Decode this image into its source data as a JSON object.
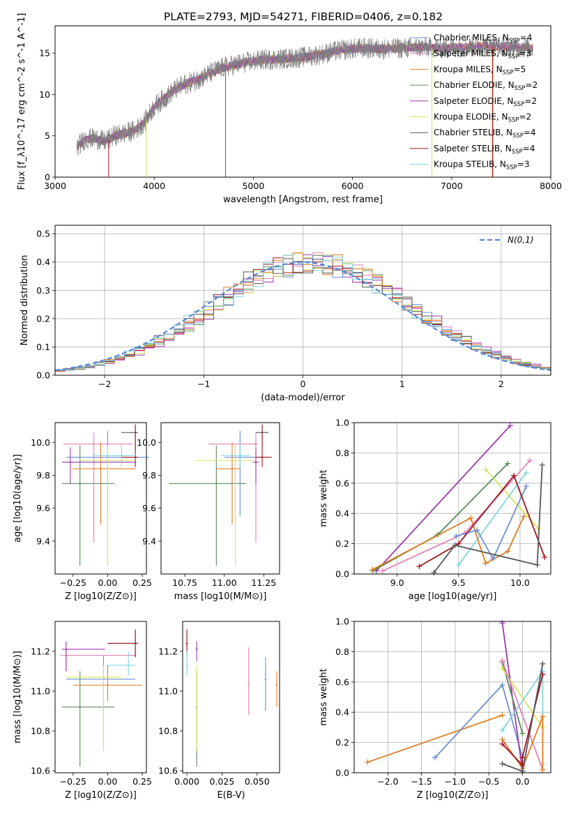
{
  "title": "PLATE=2793, MJD=54271, FIBERID=0406, z=0.182",
  "colors": {
    "CM": "#6a8fd4",
    "SM": "#e37fb8",
    "KM": "#e07d20",
    "CE": "#5a8a5a",
    "SE": "#9a3aab",
    "KE": "#d8e55a",
    "CS": "#555555",
    "SS": "#a01520",
    "KS": "#7fd6de",
    "normal": "#5b86d6"
  },
  "chart_data": [
    {
      "id": "spectrum",
      "type": "line",
      "xlabel": "wavelength [Angstrom, rest frame]",
      "ylabel": "Flux [f_λ10^-17 erg cm^-2 s^-1 A^-1]",
      "xlim": [
        3000,
        8000
      ],
      "ylim": [
        0,
        18.3
      ],
      "xticks": [
        3000,
        4000,
        5000,
        6000,
        7000,
        8000
      ],
      "yticks": [
        0,
        5,
        10,
        15
      ],
      "data_range": [
        3220,
        7820
      ],
      "continuum": [
        [
          3220,
          3.6
        ],
        [
          3300,
          4.6
        ],
        [
          3400,
          4.7
        ],
        [
          3500,
          4.3
        ],
        [
          3600,
          5.0
        ],
        [
          3700,
          5.3
        ],
        [
          3800,
          5.6
        ],
        [
          3900,
          6.6
        ],
        [
          4000,
          8.5
        ],
        [
          4100,
          9.5
        ],
        [
          4200,
          10.5
        ],
        [
          4300,
          11.2
        ],
        [
          4400,
          11.6
        ],
        [
          4500,
          12.2
        ],
        [
          4700,
          13.3
        ],
        [
          4900,
          13.8
        ],
        [
          5100,
          14.2
        ],
        [
          5300,
          14.3
        ],
        [
          5500,
          14.5
        ],
        [
          5700,
          14.9
        ],
        [
          5900,
          15.4
        ],
        [
          6100,
          15.6
        ],
        [
          6300,
          15.5
        ],
        [
          6500,
          15.6
        ],
        [
          6700,
          15.7
        ],
        [
          6900,
          15.6
        ],
        [
          7100,
          15.7
        ],
        [
          7300,
          15.9
        ],
        [
          7500,
          15.8
        ],
        [
          7820,
          15.6
        ]
      ],
      "legend": [
        {
          "label": "Chabrier MILES, N_SSP=4",
          "color_key": "CM"
        },
        {
          "label": "Salpeter MILES, N_SSP=3",
          "color_key": "SM"
        },
        {
          "label": "Kroupa MILES, N_SSP=5",
          "color_key": "KM"
        },
        {
          "label": "Chabrier ELODIE, N_SSP=2",
          "color_key": "CE"
        },
        {
          "label": "Salpeter ELODIE, N_SSP=2",
          "color_key": "SE"
        },
        {
          "label": "Kroupa ELODIE, N_SSP=2",
          "color_key": "KE"
        },
        {
          "label": "Chabrier STELIB, N_SSP=4",
          "color_key": "CS"
        },
        {
          "label": "Salpeter STELIB, N_SSP=4",
          "color_key": "SS"
        },
        {
          "label": "Kroupa STELIB, N_SSP=3",
          "color_key": "KS"
        }
      ]
    },
    {
      "id": "residuals",
      "type": "line",
      "xlabel": "(data-model)/error",
      "ylabel": "Normed distribution",
      "xlim": [
        -2.5,
        2.5
      ],
      "ylim": [
        0,
        0.53
      ],
      "xticks": [
        -2,
        -1,
        0,
        1,
        2
      ],
      "yticks": [
        0.0,
        0.1,
        0.2,
        0.3,
        0.4,
        0.5
      ],
      "grid": true,
      "legend_label": "N(0,1)",
      "legend_position": "top-right"
    },
    {
      "id": "age_vs_Z",
      "type": "scatter",
      "xlabel": "Z [log10(Z/Z⊙)]",
      "ylabel": "age  [log10(age/yr)]",
      "xlim": [
        -0.38,
        0.28
      ],
      "ylim": [
        9.2,
        10.12
      ],
      "xticks": [
        -0.25,
        0.0,
        0.25
      ],
      "yticks": [
        9.4,
        9.6,
        9.8,
        10.0
      ],
      "points": [
        {
          "k": "CM",
          "x": 0.0,
          "y": 9.91,
          "xe": [
            -0.3,
            0.3
          ],
          "ye": [
            9.55,
            10.07
          ]
        },
        {
          "k": "SM",
          "x": -0.1,
          "y": 9.99,
          "xe": [
            -0.32,
            0.18
          ],
          "ye": [
            9.39,
            10.06
          ]
        },
        {
          "k": "KM",
          "x": -0.05,
          "y": 9.84,
          "xe": [
            -0.25,
            0.2
          ],
          "ye": [
            9.5,
            10.0
          ]
        },
        {
          "k": "CE",
          "x": -0.2,
          "y": 9.75,
          "xe": [
            -0.33,
            0.05
          ],
          "ye": [
            9.25,
            9.98
          ]
        },
        {
          "k": "SE",
          "x": -0.27,
          "y": 9.88,
          "xe": [
            -0.33,
            0.2
          ],
          "ye": [
            9.75,
            9.97
          ]
        },
        {
          "k": "KE",
          "x": 0.0,
          "y": 9.89,
          "xe": [
            -0.2,
            0.18
          ],
          "ye": [
            9.25,
            9.98
          ]
        },
        {
          "k": "CS",
          "x": 0.2,
          "y": 10.06,
          "xe": [
            0.1,
            0.22
          ],
          "ye": [
            9.95,
            10.1
          ]
        },
        {
          "k": "SS",
          "x": 0.2,
          "y": 9.91,
          "xe": [
            0.1,
            0.22
          ],
          "ye": [
            9.85,
            10.11
          ]
        },
        {
          "k": "KS",
          "x": 0.1,
          "y": 9.92,
          "xe": [
            -0.1,
            0.2
          ],
          "ye": [
            9.85,
            9.99
          ]
        }
      ]
    },
    {
      "id": "age_vs_mass",
      "type": "scatter",
      "xlabel": "mass [log10(M/M⊙)]",
      "ylabel": "",
      "xlim": [
        10.6,
        11.35
      ],
      "ylim": [
        9.2,
        10.12
      ],
      "xticks": [
        10.75,
        11.0,
        11.25
      ],
      "yticks": [
        9.4,
        9.6,
        9.8,
        10.0
      ],
      "points": [
        {
          "k": "CM",
          "x": 11.1,
          "y": 9.91,
          "xe": [
            11.0,
            11.2
          ],
          "ye": [
            9.55,
            10.07
          ]
        },
        {
          "k": "SM",
          "x": 11.2,
          "y": 9.99,
          "xe": [
            10.9,
            11.21
          ],
          "ye": [
            9.39,
            10.06
          ]
        },
        {
          "k": "KM",
          "x": 11.05,
          "y": 9.84,
          "xe": [
            10.95,
            11.1
          ],
          "ye": [
            9.5,
            10.0
          ]
        },
        {
          "k": "CE",
          "x": 10.95,
          "y": 9.75,
          "xe": [
            10.65,
            11.14
          ],
          "ye": [
            9.25,
            9.98
          ]
        },
        {
          "k": "SE",
          "x": 11.2,
          "y": 9.88,
          "xe": [
            11.18,
            11.22
          ],
          "ye": [
            9.75,
            9.97
          ]
        },
        {
          "k": "KE",
          "x": 11.07,
          "y": 9.89,
          "xe": [
            10.82,
            11.18
          ],
          "ye": [
            9.25,
            9.98
          ]
        },
        {
          "k": "CS",
          "x": 11.24,
          "y": 10.06,
          "xe": [
            11.2,
            11.28
          ],
          "ye": [
            9.95,
            10.1
          ]
        },
        {
          "k": "SS",
          "x": 11.24,
          "y": 9.91,
          "xe": [
            11.2,
            11.3
          ],
          "ye": [
            9.85,
            10.11
          ]
        },
        {
          "k": "KS",
          "x": 11.1,
          "y": 9.92,
          "xe": [
            10.98,
            11.16
          ],
          "ye": [
            9.85,
            9.99
          ]
        }
      ]
    },
    {
      "id": "mw_vs_age",
      "type": "line",
      "xlabel": "age  [log10(age/yr)]",
      "ylabel": "mass weight",
      "xlim": [
        8.65,
        10.25
      ],
      "ylim": [
        0,
        1.0
      ],
      "xticks": [
        9.0,
        9.5,
        10.0
      ],
      "yticks": [
        0.0,
        0.2,
        0.4,
        0.6,
        0.8,
        1.0
      ],
      "grid": true,
      "lines": [
        {
          "k": "SE",
          "pts": [
            [
              8.83,
              0.02
            ],
            [
              9.92,
              0.98
            ]
          ]
        },
        {
          "k": "CE",
          "pts": [
            [
              8.8,
              0.02
            ],
            [
              9.33,
              0.26
            ],
            [
              9.9,
              0.73
            ]
          ]
        },
        {
          "k": "KE",
          "pts": [
            [
              9.72,
              0.69
            ],
            [
              10.15,
              0.3
            ]
          ]
        },
        {
          "k": "KS",
          "pts": [
            [
              9.5,
              0.06
            ],
            [
              10.05,
              0.67
            ]
          ]
        },
        {
          "k": "SM",
          "pts": [
            [
              8.88,
              0.02
            ],
            [
              9.55,
              0.27
            ],
            [
              10.08,
              0.75
            ]
          ]
        },
        {
          "k": "KM",
          "pts": [
            [
              8.8,
              0.03
            ],
            [
              9.6,
              0.37
            ],
            [
              9.72,
              0.07
            ],
            [
              9.9,
              0.15
            ],
            [
              10.03,
              0.38
            ]
          ]
        },
        {
          "k": "CM",
          "pts": [
            [
              9.48,
              0.25
            ],
            [
              9.65,
              0.29
            ],
            [
              9.78,
              0.1
            ],
            [
              10.05,
              0.58
            ]
          ]
        },
        {
          "k": "SS",
          "pts": [
            [
              9.18,
              0.05
            ],
            [
              9.5,
              0.2
            ],
            [
              9.95,
              0.65
            ],
            [
              10.2,
              0.11
            ]
          ]
        },
        {
          "k": "CS",
          "pts": [
            [
              9.3,
              0.01
            ],
            [
              9.47,
              0.19
            ],
            [
              10.14,
              0.06
            ],
            [
              10.18,
              0.72
            ]
          ]
        }
      ]
    },
    {
      "id": "mass_vs_Z",
      "type": "scatter",
      "xlabel": "Z [log10(Z/Z⊙)]",
      "ylabel": "mass [log10(M/M⊙)]",
      "xlim": [
        -0.38,
        0.28
      ],
      "ylim": [
        10.59,
        11.35
      ],
      "xticks": [
        -0.25,
        0.0,
        0.25
      ],
      "yticks": [
        10.6,
        10.8,
        11.0,
        11.2
      ],
      "points": [
        {
          "k": "CM",
          "x": -0.03,
          "y": 11.06,
          "xe": [
            -0.3,
            0.2
          ],
          "ye": [
            10.9,
            11.18
          ]
        },
        {
          "k": "SM",
          "x": -0.3,
          "y": 11.18,
          "xe": [
            -0.34,
            0.2
          ],
          "ye": [
            11.1,
            11.22
          ]
        },
        {
          "k": "KM",
          "x": 0.0,
          "y": 11.03,
          "xe": [
            -0.25,
            0.25
          ],
          "ye": [
            10.95,
            11.13
          ]
        },
        {
          "k": "CE",
          "x": -0.2,
          "y": 10.92,
          "xe": [
            -0.33,
            0.05
          ],
          "ye": [
            10.62,
            11.1
          ]
        },
        {
          "k": "SE",
          "x": -0.3,
          "y": 11.21,
          "xe": [
            -0.33,
            -0.02
          ],
          "ye": [
            11.1,
            11.25
          ]
        },
        {
          "k": "KE",
          "x": -0.03,
          "y": 11.07,
          "xe": [
            -0.3,
            0.1
          ],
          "ye": [
            10.7,
            11.13
          ]
        },
        {
          "k": "CS",
          "x": 0.2,
          "y": 11.24,
          "xe": [
            0.0,
            0.22
          ],
          "ye": [
            11.17,
            11.3
          ]
        },
        {
          "k": "SS",
          "x": 0.2,
          "y": 11.24,
          "xe": [
            0.0,
            0.22
          ],
          "ye": [
            11.17,
            11.31
          ]
        },
        {
          "k": "KS",
          "x": 0.15,
          "y": 11.13,
          "xe": [
            0.0,
            0.2
          ],
          "ye": [
            11.08,
            11.2
          ]
        }
      ]
    },
    {
      "id": "mass_vs_ebv",
      "type": "scatter",
      "xlabel": "E(B-V)",
      "ylabel": "",
      "xlim": [
        -0.003,
        0.066
      ],
      "ylim": [
        10.59,
        11.35
      ],
      "xticks": [
        0.0,
        0.025,
        0.05
      ],
      "yticks": [
        10.6,
        10.8,
        11.0,
        11.2
      ],
      "points": [
        {
          "k": "CM",
          "x": 0.056,
          "y": 11.06,
          "ye": [
            10.9,
            11.17
          ]
        },
        {
          "k": "SM",
          "x": 0.044,
          "y": 11.04,
          "ye": [
            10.88,
            11.22
          ]
        },
        {
          "k": "KM",
          "x": 0.064,
          "y": 11.03,
          "ye": [
            10.92,
            11.1
          ]
        },
        {
          "k": "CE",
          "x": 0.007,
          "y": 10.92,
          "ye": [
            10.62,
            11.1
          ]
        },
        {
          "k": "SE",
          "x": 0.007,
          "y": 11.21,
          "ye": [
            11.15,
            11.25
          ]
        },
        {
          "k": "KE",
          "x": 0.007,
          "y": 11.07,
          "ye": [
            10.7,
            11.13
          ]
        },
        {
          "k": "CS",
          "x": 0.0,
          "y": 11.24,
          "ye": [
            11.17,
            11.3
          ]
        },
        {
          "k": "SS",
          "x": 0.0,
          "y": 11.24,
          "ye": [
            11.17,
            11.31
          ]
        },
        {
          "k": "KS",
          "x": 0.0,
          "y": 11.13,
          "ye": [
            11.08,
            11.2
          ]
        }
      ]
    },
    {
      "id": "mw_vs_Z",
      "type": "line",
      "xlabel": "Z [log10(Z/Z⊙)]",
      "ylabel": "mass weight",
      "xlim": [
        -2.5,
        0.42
      ],
      "ylim": [
        0,
        1.0
      ],
      "xticks": [
        -2.0,
        -1.5,
        -1.0,
        -0.5,
        0.0
      ],
      "yticks": [
        0.0,
        0.2,
        0.4,
        0.6,
        0.8,
        1.0
      ],
      "grid": true,
      "lines": [
        {
          "k": "KM",
          "pts": [
            [
              -2.3,
              0.07
            ],
            [
              -0.3,
              0.38
            ]
          ]
        },
        {
          "k": "CM",
          "pts": [
            [
              -1.3,
              0.1
            ],
            [
              -0.3,
              0.58
            ],
            [
              0.0,
              0.1
            ]
          ]
        },
        {
          "k": "SE",
          "pts": [
            [
              -0.3,
              0.99
            ],
            [
              0.0,
              0.01
            ]
          ]
        },
        {
          "k": "CE",
          "pts": [
            [
              -0.3,
              0.73
            ],
            [
              0.0,
              0.26
            ]
          ]
        },
        {
          "k": "KE",
          "pts": [
            [
              -0.3,
              0.69
            ],
            [
              0.3,
              0.3
            ]
          ]
        },
        {
          "k": "KS",
          "pts": [
            [
              -0.3,
              0.28
            ],
            [
              0.3,
              0.67
            ],
            [
              0.3,
              0.06
            ]
          ]
        },
        {
          "k": "SM",
          "pts": [
            [
              -0.3,
              0.74
            ],
            [
              0.3,
              0.02
            ]
          ]
        },
        {
          "k": "KM",
          "pts": [
            [
              -0.3,
              0.22
            ],
            [
              0.0,
              0.03
            ],
            [
              0.3,
              0.37
            ],
            [
              0.3,
              0.02
            ]
          ]
        },
        {
          "k": "SS",
          "pts": [
            [
              -0.3,
              0.19
            ],
            [
              0.0,
              0.05
            ],
            [
              0.0,
              0.1
            ],
            [
              0.3,
              0.65
            ]
          ]
        },
        {
          "k": "CS",
          "pts": [
            [
              -0.3,
              0.06
            ],
            [
              0.0,
              0.01
            ],
            [
              0.3,
              0.72
            ]
          ]
        }
      ]
    }
  ]
}
